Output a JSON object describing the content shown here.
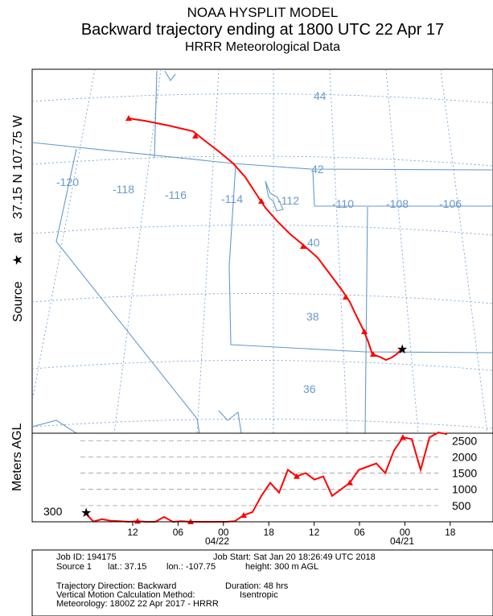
{
  "titles": {
    "line1": "NOAA HYSPLIT MODEL",
    "line2": "Backward trajectory ending at 1800 UTC 22 Apr 17",
    "line3": "HRRR Meteorological Data"
  },
  "side_labels": {
    "source": "Source",
    "at": "at",
    "location": "37.15 N  107.75 W",
    "meters_agl": "Meters AGL",
    "height_start": "300"
  },
  "map": {
    "lon_labels": [
      "-120",
      "-118",
      "-116",
      "-114",
      "-112",
      "-110",
      "-108",
      "-106"
    ],
    "lat_labels": [
      "44",
      "42",
      "40",
      "38",
      "36"
    ],
    "trajectory_color": "#ff0000",
    "grid_color": "#6699cc"
  },
  "chart_data": {
    "type": "line",
    "title": "",
    "ylabel": "Meters AGL",
    "y_ticks": [
      500,
      1000,
      1500,
      2000,
      2500
    ],
    "x_tick_labels": [
      "12",
      "06",
      "00",
      "18",
      "12",
      "06",
      "00",
      "18"
    ],
    "date_labels": [
      "04/22",
      "04/21"
    ],
    "series": [
      {
        "values": [
          300,
          10,
          80,
          30,
          20,
          0,
          20,
          0,
          0,
          150,
          0,
          20,
          0,
          0,
          0,
          0,
          0,
          20,
          200,
          300,
          800,
          1200,
          900,
          1600,
          1400,
          1500,
          1300,
          1400,
          800,
          1000,
          1200,
          1600,
          1700,
          1800,
          1500,
          2200,
          2600,
          2550,
          1600,
          2600,
          2750,
          2700
        ]
      }
    ]
  },
  "footer": {
    "job_id": "Job ID: 194175",
    "job_start": "Job Start: Sat Jan 20 18:26:49 UTC 2018",
    "source_line": "Source 1",
    "lat": "lat.: 37.15",
    "lon": "lon.: -107.75",
    "height": "height: 300 m AGL",
    "direction": "Trajectory Direction: Backward",
    "duration": "Duration: 48 hrs",
    "vertical": "Vertical Motion Calculation Method:",
    "vertical_value": "Isentropic",
    "meteorology": "Meteorology: 1800Z 22 Apr 2017 - HRRR"
  }
}
